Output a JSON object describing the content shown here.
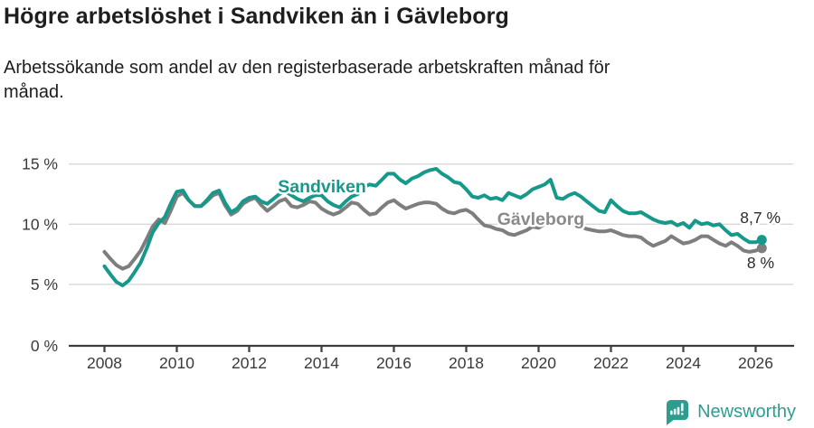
{
  "header": {
    "title": "Högre arbetslöshet i Sandviken än i Gävleborg",
    "subtitle_line1": "Arbetssökande som andel av den registerbaserade arbetskraften månad för",
    "subtitle_line2": "månad."
  },
  "chart_data": {
    "type": "line",
    "title": "Högre arbetslöshet i Sandviken än i Gävleborg",
    "subtitle": "Arbetssökande som andel av den registerbaserade arbetskraften månad för månad.",
    "xlabel": "",
    "ylabel": "",
    "y_unit": "%",
    "xlim": [
      2007,
      2027
    ],
    "ylim": [
      0,
      15
    ],
    "grid": "horizontal",
    "legend_position": "inline-labels",
    "x_format": "decimal-year",
    "x_ticks": [
      2008,
      2010,
      2012,
      2014,
      2016,
      2018,
      2020,
      2022,
      2024,
      2026
    ],
    "y_ticks": [
      {
        "value": 0,
        "label": "0 %"
      },
      {
        "value": 5,
        "label": "5 %"
      },
      {
        "value": 10,
        "label": "10 %"
      },
      {
        "value": 15,
        "label": "15 %"
      }
    ],
    "x": [
      2008,
      2008.17,
      2008.33,
      2008.5,
      2008.67,
      2008.83,
      2009,
      2009.17,
      2009.33,
      2009.5,
      2009.67,
      2009.83,
      2010,
      2010.17,
      2010.33,
      2010.5,
      2010.67,
      2010.83,
      2011,
      2011.17,
      2011.33,
      2011.5,
      2011.67,
      2011.83,
      2012,
      2012.17,
      2012.33,
      2012.5,
      2012.67,
      2012.83,
      2013,
      2013.17,
      2013.33,
      2013.5,
      2013.67,
      2013.83,
      2014,
      2014.17,
      2014.33,
      2014.5,
      2014.67,
      2014.83,
      2015,
      2015.17,
      2015.33,
      2015.5,
      2015.67,
      2015.83,
      2016,
      2016.17,
      2016.33,
      2016.5,
      2016.67,
      2016.83,
      2017,
      2017.17,
      2017.33,
      2017.5,
      2017.67,
      2017.83,
      2018,
      2018.17,
      2018.33,
      2018.5,
      2018.67,
      2018.83,
      2019,
      2019.17,
      2019.33,
      2019.5,
      2019.67,
      2019.83,
      2020,
      2020.17,
      2020.33,
      2020.5,
      2020.67,
      2020.83,
      2021,
      2021.17,
      2021.33,
      2021.5,
      2021.67,
      2021.83,
      2022,
      2022.17,
      2022.33,
      2022.5,
      2022.67,
      2022.83,
      2023,
      2023.17,
      2023.33,
      2023.5,
      2023.67,
      2023.83,
      2024,
      2024.17,
      2024.33,
      2024.5,
      2024.67,
      2024.83,
      2025,
      2025.17,
      2025.33,
      2025.5,
      2025.67,
      2025.83,
      2026,
      2026.17
    ],
    "series": [
      {
        "name": "Sandviken",
        "color": "#16998a",
        "label_color": "#16998a",
        "end_label": "8,7 %",
        "end_value": 8.7,
        "values": [
          6.5,
          5.8,
          5.2,
          4.9,
          5.3,
          6.0,
          6.8,
          8.0,
          9.3,
          10.1,
          10.6,
          11.7,
          12.7,
          12.8,
          12.0,
          11.5,
          11.5,
          12.0,
          12.6,
          12.8,
          11.8,
          11.0,
          11.3,
          11.9,
          12.2,
          12.3,
          11.9,
          11.7,
          12.1,
          12.5,
          12.7,
          12.4,
          12.1,
          11.9,
          12.2,
          12.4,
          12.4,
          11.9,
          11.6,
          11.4,
          11.9,
          12.3,
          12.5,
          13.1,
          13.3,
          13.2,
          13.7,
          14.2,
          14.2,
          13.7,
          13.4,
          13.8,
          14.0,
          14.3,
          14.5,
          14.6,
          14.2,
          13.9,
          13.5,
          13.4,
          12.9,
          12.3,
          12.2,
          12.4,
          12.1,
          12.2,
          12.0,
          12.6,
          12.4,
          12.2,
          12.5,
          12.9,
          13.1,
          13.3,
          13.7,
          12.2,
          12.1,
          12.4,
          12.6,
          12.3,
          11.9,
          11.5,
          11.1,
          11.0,
          12.0,
          11.5,
          11.1,
          10.9,
          10.9,
          11.0,
          10.7,
          10.4,
          10.2,
          10.1,
          10.2,
          9.9,
          10.1,
          9.7,
          10.3,
          10.0,
          10.1,
          9.9,
          10.0,
          9.5,
          9.1,
          9.2,
          8.8,
          8.5,
          8.5,
          8.7
        ]
      },
      {
        "name": "Gävleborg",
        "color": "#7e7e7e",
        "label_color": "#8a8a8a",
        "end_label": "8 %",
        "end_value": 8.0,
        "values": [
          7.7,
          7.1,
          6.6,
          6.3,
          6.5,
          7.1,
          7.8,
          8.8,
          9.8,
          10.4,
          10.1,
          11.1,
          12.3,
          12.6,
          12.0,
          11.5,
          11.5,
          11.9,
          12.4,
          12.6,
          11.6,
          10.8,
          11.1,
          11.7,
          12.0,
          12.2,
          11.6,
          11.1,
          11.5,
          11.9,
          12.1,
          11.5,
          11.4,
          11.6,
          11.9,
          11.8,
          11.3,
          11.0,
          10.8,
          11.0,
          11.4,
          11.8,
          11.7,
          11.2,
          10.8,
          10.9,
          11.4,
          11.8,
          12.0,
          11.6,
          11.3,
          11.5,
          11.7,
          11.8,
          11.8,
          11.7,
          11.3,
          11.0,
          10.9,
          11.1,
          11.2,
          10.9,
          10.4,
          9.9,
          9.8,
          9.6,
          9.5,
          9.2,
          9.1,
          9.3,
          9.5,
          9.8,
          9.7,
          10.0,
          10.4,
          10.3,
          10.1,
          10.1,
          10.0,
          9.8,
          9.6,
          9.5,
          9.4,
          9.4,
          9.5,
          9.3,
          9.1,
          9.0,
          9.0,
          8.9,
          8.5,
          8.2,
          8.4,
          8.6,
          9.0,
          8.7,
          8.4,
          8.5,
          8.7,
          9.0,
          9.0,
          8.7,
          8.4,
          8.2,
          8.5,
          8.2,
          7.8,
          7.7,
          7.8,
          8.0
        ]
      }
    ]
  },
  "footer": {
    "brand": "Newsworthy"
  }
}
